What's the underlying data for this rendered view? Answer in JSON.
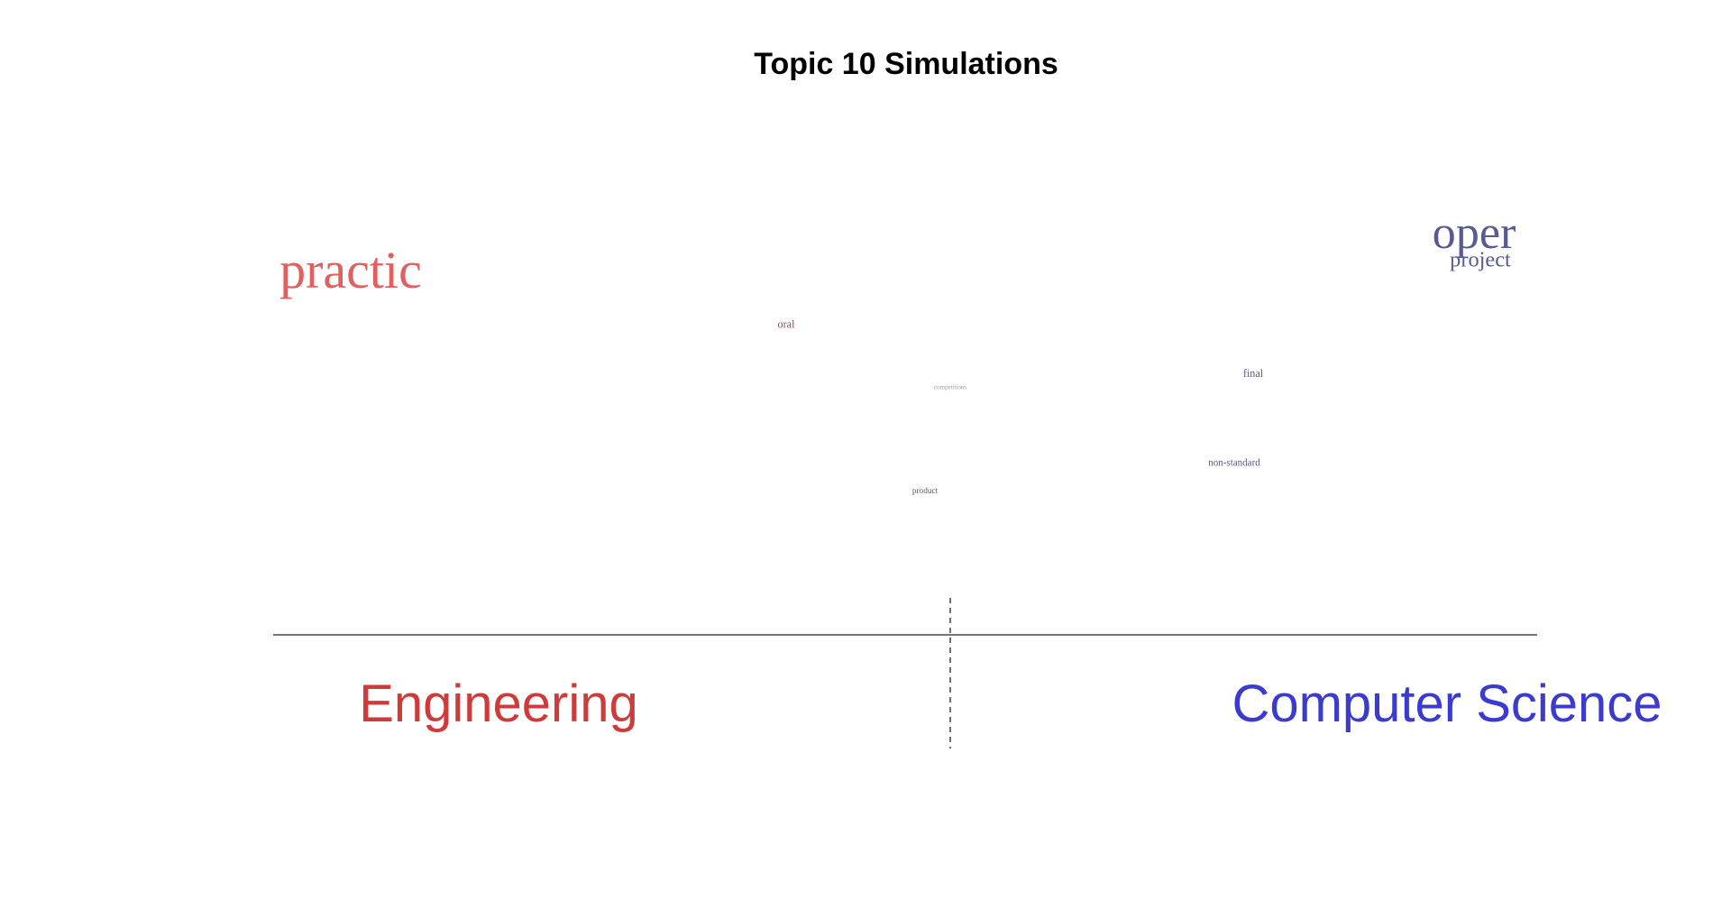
{
  "chart_data": {
    "type": "scatter",
    "title": "Topic 10 Simulations",
    "xlim": [
      -1,
      1
    ],
    "ylim": [
      0,
      1
    ],
    "groups": [
      {
        "label": "Engineering",
        "color": "#cd3b3b"
      },
      {
        "label": "Computer Science",
        "color": "#3b3bcd"
      }
    ],
    "words": [
      {
        "word": "practic",
        "x": -0.88,
        "y": 0.87,
        "size": 1.0,
        "color": "#e06060"
      },
      {
        "word": "oper",
        "x": 0.9,
        "y": 1.0,
        "size": 0.9,
        "color": "#5a5a92"
      },
      {
        "word": "project",
        "x": 0.91,
        "y": 0.94,
        "size": 0.42,
        "color": "#5a5a92"
      },
      {
        "word": "oral",
        "x": -0.19,
        "y": 0.74,
        "size": 0.21,
        "color": "#8a4a5a"
      },
      {
        "word": "final",
        "x": 0.55,
        "y": 0.58,
        "size": 0.21,
        "color": "#5a5a82"
      },
      {
        "word": "non-standard",
        "x": 0.52,
        "y": 0.29,
        "size": 0.19,
        "color": "#5a5a82"
      },
      {
        "word": "product",
        "x": 0.03,
        "y": 0.2,
        "size": 0.16,
        "color": "#555566"
      },
      {
        "word": "competitions",
        "x": 0.07,
        "y": 0.54,
        "size": 0.09,
        "color": "#9a9aa8"
      }
    ],
    "divider_x": 0.07,
    "legend": "none",
    "grid": false
  }
}
